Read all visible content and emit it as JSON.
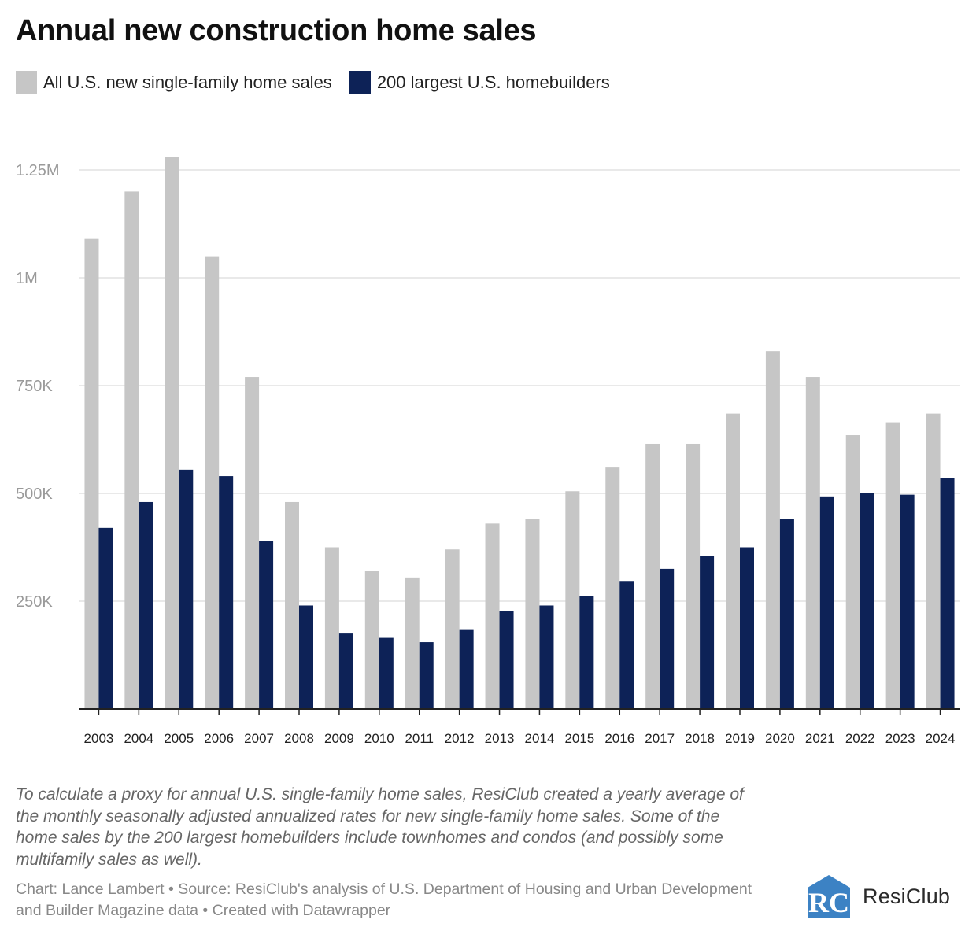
{
  "title": "Annual new construction home sales",
  "legend": [
    {
      "label": "All U.S. new single-family home sales",
      "color": "#c6c6c6"
    },
    {
      "label": "200 largest U.S. homebuilders",
      "color": "#0d2257"
    }
  ],
  "chart_data": {
    "type": "bar",
    "categories": [
      "2003",
      "2004",
      "2005",
      "2006",
      "2007",
      "2008",
      "2009",
      "2010",
      "2011",
      "2012",
      "2013",
      "2014",
      "2015",
      "2016",
      "2017",
      "2018",
      "2019",
      "2020",
      "2021",
      "2022",
      "2023",
      "2024"
    ],
    "series": [
      {
        "name": "All U.S. new single-family home sales",
        "color": "#c6c6c6",
        "values": [
          1090000,
          1200000,
          1280000,
          1050000,
          770000,
          480000,
          375000,
          320000,
          305000,
          370000,
          430000,
          440000,
          505000,
          560000,
          615000,
          615000,
          685000,
          830000,
          770000,
          635000,
          665000,
          685000
        ]
      },
      {
        "name": "200 largest U.S. homebuilders",
        "color": "#0d2257",
        "values": [
          420000,
          480000,
          555000,
          540000,
          390000,
          240000,
          175000,
          165000,
          155000,
          185000,
          228000,
          240000,
          262000,
          297000,
          325000,
          355000,
          375000,
          440000,
          493000,
          500000,
          497000,
          535000
        ]
      }
    ],
    "ylim": [
      0,
      1300000
    ],
    "yticks": [
      {
        "value": 250000,
        "label": "250K"
      },
      {
        "value": 500000,
        "label": "500K"
      },
      {
        "value": 750000,
        "label": "750K"
      },
      {
        "value": 1000000,
        "label": "1M"
      },
      {
        "value": 1250000,
        "label": "1.25M"
      }
    ],
    "grid": true,
    "legend_position": "top-left",
    "xlabel": "",
    "ylabel": ""
  },
  "note": "To calculate a proxy for annual U.S. single-family home sales, ResiClub created a yearly average of the monthly seasonally adjusted annualized rates for new single-family home sales. Some of the home sales by the 200 largest homebuilders include townhomes and condos (and possibly some multifamily sales as well).",
  "credit": "Chart: Lance Lambert • Source: ResiClub's analysis of U.S. Department of Housing and Urban Development and Builder Magazine data • Created with Datawrapper",
  "logo": {
    "text": "ResiClub",
    "mark": "RC",
    "color": "#3c82c4"
  }
}
